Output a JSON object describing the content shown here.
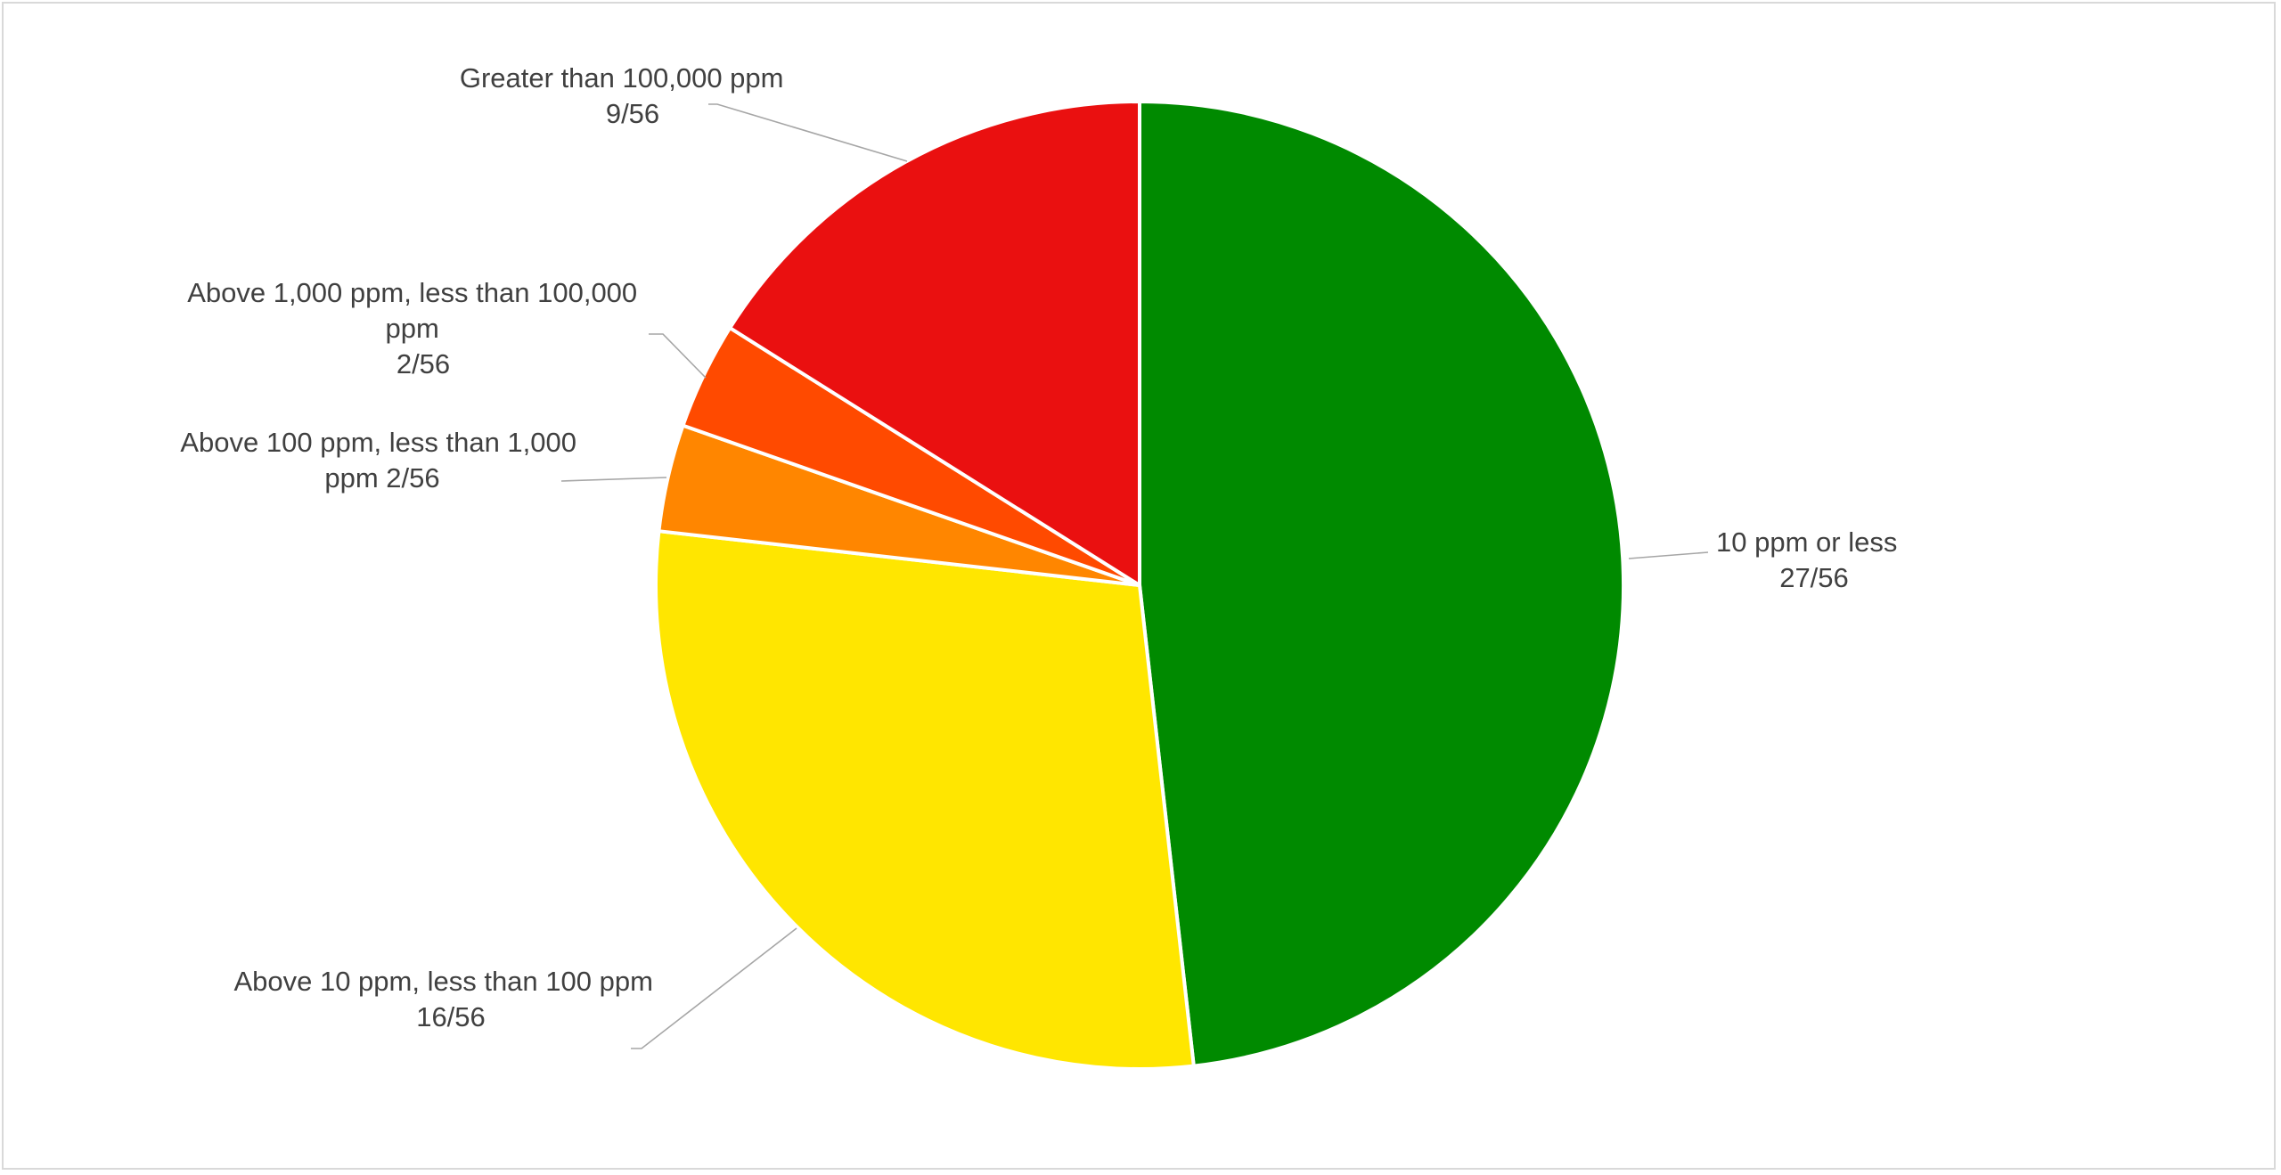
{
  "chart_data": {
    "type": "pie",
    "title": "",
    "start_angle_deg": 0,
    "direction": "clockwise",
    "legend": "none",
    "slices": [
      {
        "name": "10 ppm or less",
        "value": 27,
        "value_label": "27/56",
        "color": "#008a00"
      },
      {
        "name": "Above 10 ppm, less than 100 ppm",
        "value": 16,
        "value_label": "16/56",
        "color": "#ffe600"
      },
      {
        "name": "Above 100 ppm, less than 1,000 ppm",
        "value": 2,
        "value_label": "2/56",
        "color": "#ff8600"
      },
      {
        "name": "Above 1,000 ppm, less than 100,000 ppm",
        "value": 2,
        "value_label": "2/56",
        "color": "#ff4a00"
      },
      {
        "name": "Greater than 100,000 ppm",
        "value": 9,
        "value_label": "9/56",
        "color": "#ea1010"
      }
    ]
  }
}
